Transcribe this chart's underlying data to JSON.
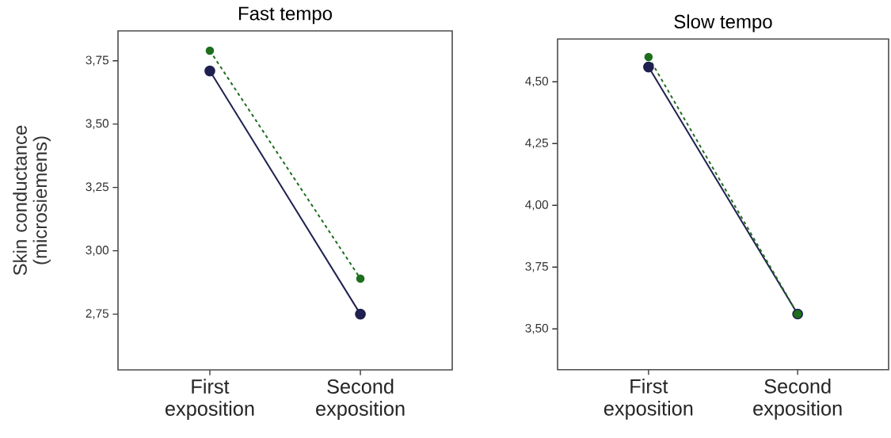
{
  "chart_data": [
    {
      "type": "line",
      "title": "Fast tempo",
      "ylabel": "Skin conductance (microsiemens)",
      "categories": [
        "First exposition",
        "Second exposition"
      ],
      "series": [
        {
          "color": "#1f2050",
          "values": [
            3.71,
            2.75
          ],
          "line_style": "solid"
        },
        {
          "color": "#1e6e1e",
          "values": [
            3.79,
            2.89
          ],
          "line_style": "dashed"
        }
      ],
      "ylim": [
        2.53,
        3.868
      ],
      "yticks": [
        {
          "value": 2.75,
          "label": "2,75"
        },
        {
          "value": 3.0,
          "label": "3,00"
        },
        {
          "value": 3.25,
          "label": "3,25"
        },
        {
          "value": 3.5,
          "label": "3,50"
        },
        {
          "value": 3.75,
          "label": "3,75"
        }
      ],
      "marker": "circle"
    },
    {
      "type": "line",
      "title": "Slow tempo",
      "categories": [
        "First exposition",
        "Second exposition"
      ],
      "series": [
        {
          "color": "#1f2050",
          "values": [
            4.56,
            3.56
          ],
          "line_style": "solid"
        },
        {
          "color": "#1e6e1e",
          "values": [
            4.6,
            3.56
          ],
          "line_style": "dashed"
        }
      ],
      "ylim": [
        3.335,
        4.673
      ],
      "yticks": [
        {
          "value": 3.5,
          "label": "3,50"
        },
        {
          "value": 3.75,
          "label": "3,75"
        },
        {
          "value": 4.0,
          "label": "4,00"
        },
        {
          "value": 4.25,
          "label": "4,25"
        },
        {
          "value": 4.5,
          "label": "4,50"
        }
      ],
      "marker": "circle"
    }
  ]
}
